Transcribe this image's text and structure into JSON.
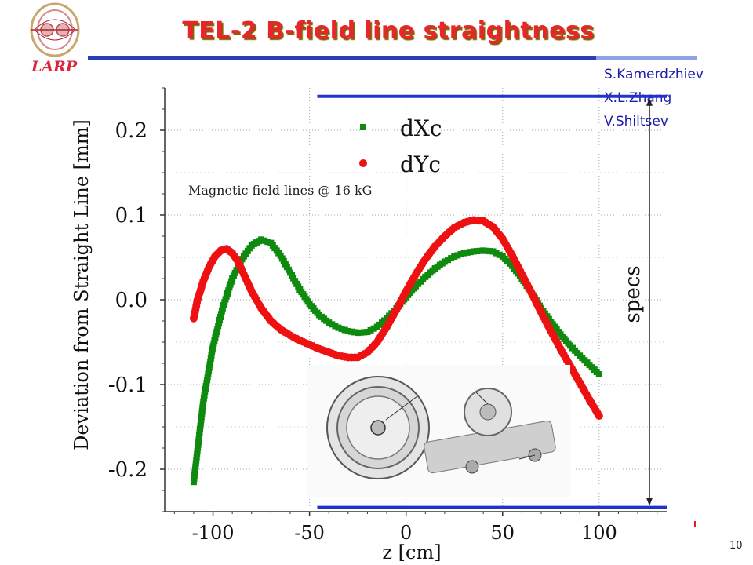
{
  "slide": {
    "title": "TEL-2 B-field line straightness",
    "logo_text": "LARP",
    "authors": [
      "S.Kamerdzhiev",
      "X.L.Zhang",
      "V.Shiltsev"
    ],
    "page_number": "10"
  },
  "colors": {
    "title": "#e8252b",
    "rule": "#2a3eb8",
    "authors": "#1c1ca8",
    "series_dXc": "#0e8a0e",
    "series_dYc": "#ee1111",
    "spec_lines": "#2233cc"
  },
  "chart_data": {
    "type": "scatter",
    "title": "",
    "xlabel": "z [cm]",
    "ylabel": "Deviation from Straight Line [mm]",
    "xlim": [
      -125,
      135
    ],
    "ylim": [
      -0.25,
      0.25
    ],
    "xticks": [
      "-100",
      "-50",
      "0",
      "50",
      "100"
    ],
    "xtick_values": [
      -100,
      -50,
      0,
      50,
      100
    ],
    "yticks": [
      "0.2",
      "0.1",
      "0.0",
      "-0.1",
      "-0.2"
    ],
    "ytick_values": [
      0.2,
      0.1,
      0.0,
      -0.1,
      -0.2
    ],
    "grid": true,
    "legend_position": "top-center",
    "annotation": "Magnetic field lines @ 16 kG",
    "spec_label": "specs",
    "spec_band": [
      -0.245,
      0.24
    ],
    "spec_x_range": [
      -46,
      135
    ],
    "series": [
      {
        "name": "dXc",
        "marker": "square",
        "color": "#0e8a0e",
        "points": [
          [
            -110,
            -0.215
          ],
          [
            -105,
            -0.12
          ],
          [
            -100,
            -0.055
          ],
          [
            -95,
            -0.01
          ],
          [
            -90,
            0.025
          ],
          [
            -85,
            0.048
          ],
          [
            -80,
            0.064
          ],
          [
            -75,
            0.071
          ],
          [
            -70,
            0.067
          ],
          [
            -65,
            0.052
          ],
          [
            -60,
            0.032
          ],
          [
            -55,
            0.012
          ],
          [
            -50,
            -0.005
          ],
          [
            -45,
            -0.018
          ],
          [
            -40,
            -0.027
          ],
          [
            -35,
            -0.033
          ],
          [
            -30,
            -0.037
          ],
          [
            -25,
            -0.039
          ],
          [
            -20,
            -0.038
          ],
          [
            -15,
            -0.032
          ],
          [
            -10,
            -0.022
          ],
          [
            -5,
            -0.01
          ],
          [
            0,
            0.003
          ],
          [
            5,
            0.016
          ],
          [
            10,
            0.027
          ],
          [
            15,
            0.037
          ],
          [
            20,
            0.045
          ],
          [
            25,
            0.051
          ],
          [
            30,
            0.055
          ],
          [
            35,
            0.057
          ],
          [
            40,
            0.058
          ],
          [
            45,
            0.057
          ],
          [
            50,
            0.051
          ],
          [
            55,
            0.04
          ],
          [
            60,
            0.025
          ],
          [
            65,
            0.008
          ],
          [
            70,
            -0.01
          ],
          [
            75,
            -0.026
          ],
          [
            80,
            -0.041
          ],
          [
            85,
            -0.054
          ],
          [
            90,
            -0.066
          ],
          [
            95,
            -0.077
          ],
          [
            100,
            -0.088
          ]
        ]
      },
      {
        "name": "dYc",
        "marker": "circle",
        "color": "#ee1111",
        "points": [
          [
            -110,
            -0.022
          ],
          [
            -108,
            0.0
          ],
          [
            -105,
            0.022
          ],
          [
            -102,
            0.039
          ],
          [
            -99,
            0.051
          ],
          [
            -96,
            0.058
          ],
          [
            -93,
            0.06
          ],
          [
            -90,
            0.055
          ],
          [
            -87,
            0.045
          ],
          [
            -84,
            0.03
          ],
          [
            -80,
            0.01
          ],
          [
            -75,
            -0.01
          ],
          [
            -70,
            -0.025
          ],
          [
            -65,
            -0.035
          ],
          [
            -60,
            -0.042
          ],
          [
            -55,
            -0.048
          ],
          [
            -50,
            -0.053
          ],
          [
            -45,
            -0.058
          ],
          [
            -40,
            -0.062
          ],
          [
            -35,
            -0.066
          ],
          [
            -30,
            -0.068
          ],
          [
            -25,
            -0.068
          ],
          [
            -20,
            -0.062
          ],
          [
            -15,
            -0.05
          ],
          [
            -10,
            -0.032
          ],
          [
            -5,
            -0.012
          ],
          [
            0,
            0.01
          ],
          [
            5,
            0.03
          ],
          [
            10,
            0.048
          ],
          [
            15,
            0.063
          ],
          [
            20,
            0.075
          ],
          [
            25,
            0.085
          ],
          [
            30,
            0.091
          ],
          [
            35,
            0.094
          ],
          [
            40,
            0.093
          ],
          [
            45,
            0.086
          ],
          [
            50,
            0.072
          ],
          [
            55,
            0.052
          ],
          [
            60,
            0.03
          ],
          [
            65,
            0.008
          ],
          [
            70,
            -0.015
          ],
          [
            75,
            -0.037
          ],
          [
            80,
            -0.058
          ],
          [
            85,
            -0.078
          ],
          [
            90,
            -0.098
          ],
          [
            95,
            -0.118
          ],
          [
            100,
            -0.137
          ]
        ]
      }
    ]
  }
}
